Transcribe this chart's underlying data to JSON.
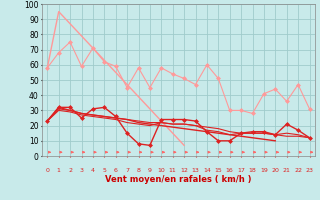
{
  "x": [
    0,
    1,
    2,
    3,
    4,
    5,
    6,
    7,
    8,
    9,
    10,
    11,
    12,
    13,
    14,
    15,
    16,
    17,
    18,
    19,
    20,
    21,
    22,
    23
  ],
  "background_color": "#c8eaea",
  "grid_color": "#a0cccc",
  "xlabel": "Vent moyen/en rafales ( km/h )",
  "ylim": [
    0,
    100
  ],
  "xlim": [
    -0.5,
    23.5
  ],
  "yticks": [
    0,
    10,
    20,
    30,
    40,
    50,
    60,
    70,
    80,
    90,
    100
  ],
  "series": [
    {
      "color": "#ff9999",
      "values": [
        58,
        68,
        75,
        59,
        71,
        62,
        59,
        45,
        58,
        45,
        58,
        54,
        51,
        47,
        60,
        51,
        30,
        30,
        28,
        41,
        44,
        36,
        47,
        31
      ],
      "linewidth": 0.8,
      "marker": "D",
      "markersize": 2
    },
    {
      "color": "#ff9999",
      "values": [
        58,
        95,
        87,
        79,
        71,
        63,
        55,
        47,
        39,
        31,
        23,
        15,
        7,
        null,
        null,
        null,
        null,
        null,
        null,
        null,
        null,
        null,
        null,
        null
      ],
      "linewidth": 1.0,
      "marker": null,
      "markersize": 0
    },
    {
      "color": "#ff9999",
      "values": [
        58,
        null,
        null,
        null,
        null,
        null,
        null,
        null,
        null,
        null,
        null,
        null,
        null,
        null,
        null,
        null,
        null,
        null,
        null,
        null,
        null,
        null,
        null,
        31
      ],
      "linewidth": 1.0,
      "marker": null,
      "markersize": 0
    },
    {
      "color": "#dd2222",
      "values": [
        23,
        32,
        32,
        25,
        31,
        32,
        26,
        15,
        8,
        7,
        24,
        24,
        24,
        23,
        16,
        10,
        10,
        15,
        16,
        16,
        14,
        21,
        17,
        12
      ],
      "linewidth": 1.0,
      "marker": "D",
      "markersize": 2
    },
    {
      "color": "#dd2222",
      "values": [
        23,
        32,
        30,
        28,
        27,
        26,
        25,
        24,
        22,
        21,
        20,
        19,
        18,
        17,
        16,
        15,
        14,
        13,
        12,
        11,
        10,
        null,
        null,
        null
      ],
      "linewidth": 1.0,
      "marker": null,
      "markersize": 0
    },
    {
      "color": "#dd2222",
      "values": [
        23,
        null,
        null,
        null,
        null,
        null,
        null,
        null,
        null,
        null,
        null,
        null,
        null,
        null,
        null,
        null,
        null,
        null,
        null,
        null,
        null,
        null,
        null,
        12
      ],
      "linewidth": 1.0,
      "marker": null,
      "markersize": 0
    },
    {
      "color": "#dd2222",
      "values": [
        23,
        31,
        30,
        28,
        27,
        26,
        25,
        24,
        23,
        22,
        22,
        21,
        21,
        20,
        19,
        18,
        16,
        15,
        15,
        15,
        14,
        13,
        13,
        12
      ],
      "linewidth": 0.8,
      "marker": null,
      "markersize": 0
    },
    {
      "color": "#dd2222",
      "values": [
        23,
        30,
        29,
        27,
        26,
        25,
        24,
        22,
        21,
        20,
        22,
        21,
        21,
        20,
        17,
        16,
        14,
        15,
        15,
        15,
        14,
        15,
        14,
        12
      ],
      "linewidth": 0.8,
      "marker": null,
      "markersize": 0
    }
  ],
  "arrow_color": "#ff6666",
  "tick_color": "#dd2222",
  "xlabel_color": "#cc0000"
}
